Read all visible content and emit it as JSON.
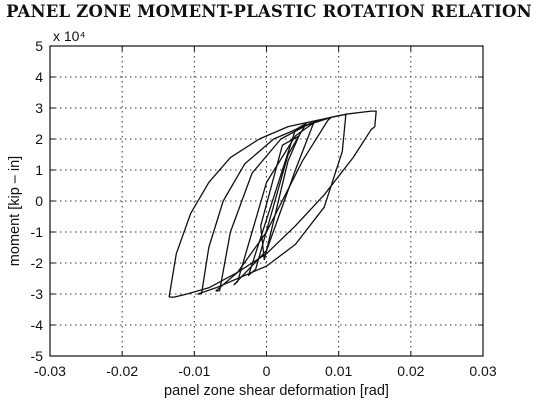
{
  "chart_data": {
    "type": "line",
    "title": "PANEL ZONE MOMENT-PLASTIC ROTATION RELATION",
    "xlabel": "panel zone shear deformation [rad]",
    "ylabel": "moment  [kip – in]",
    "y_multiplier": "x 10⁴",
    "xlim": [
      -0.03,
      0.03
    ],
    "ylim": [
      -5,
      5
    ],
    "x_ticks": [
      -0.03,
      -0.02,
      -0.01,
      0,
      0.01,
      0.02,
      0.03
    ],
    "x_tick_labels": [
      "-0.03",
      "-0.02",
      "-0.01",
      "0",
      "0.01",
      "0.02",
      "0.03"
    ],
    "y_ticks": [
      -5,
      -4,
      -3,
      -2,
      -1,
      0,
      1,
      2,
      3,
      4,
      5
    ],
    "y_tick_labels": [
      "-5",
      "-4",
      "-3",
      "-2",
      "-1",
      "0",
      "1",
      "2",
      "3",
      "4",
      "5"
    ],
    "grid": true,
    "grid_style": "dotted",
    "line_color": "#111111",
    "series": [
      {
        "x": [
          -0.0003,
          0.003,
          0.0045,
          0.0022,
          -0.0008,
          -0.0003
        ],
        "y": [
          -1.9,
          1.3,
          2.1,
          1.8,
          -0.8,
          -1.9
        ]
      },
      {
        "x": [
          -0.0015,
          0.003,
          0.0055,
          0.004,
          0.0,
          -0.0025,
          -0.0015
        ],
        "y": [
          -2.2,
          1.5,
          2.5,
          2.3,
          -0.6,
          -2.4,
          -2.2
        ]
      },
      {
        "x": [
          -0.004,
          0.0,
          0.004,
          0.007,
          0.0065,
          0.004,
          0.0,
          -0.0045,
          -0.004
        ],
        "y": [
          -2.6,
          0.6,
          2.1,
          2.6,
          2.5,
          1.0,
          -1.6,
          -2.7,
          -2.6
        ]
      },
      {
        "x": [
          -0.0065,
          -0.005,
          -0.002,
          0.002,
          0.006,
          0.009,
          0.0085,
          0.005,
          0.0,
          -0.004,
          -0.007,
          -0.0065
        ],
        "y": [
          -2.9,
          -1.0,
          0.9,
          2.0,
          2.5,
          2.7,
          2.6,
          1.3,
          -1.0,
          -2.3,
          -2.9,
          -2.9
        ]
      },
      {
        "x": [
          -0.009,
          -0.008,
          -0.006,
          -0.003,
          0.001,
          0.005,
          0.009,
          0.011,
          0.0108,
          0.0105,
          0.008,
          0.004,
          0.0,
          -0.004,
          -0.007,
          -0.0095,
          -0.009
        ],
        "y": [
          -3.0,
          -1.5,
          0.0,
          1.2,
          2.0,
          2.4,
          2.7,
          2.8,
          2.3,
          1.6,
          -0.2,
          -1.4,
          -2.1,
          -2.5,
          -2.8,
          -3.0,
          -3.0
        ]
      },
      {
        "x": [
          -0.0135,
          -0.0125,
          -0.0105,
          -0.008,
          -0.005,
          -0.001,
          0.003,
          0.007,
          0.011,
          0.0145,
          0.0152,
          0.015,
          0.0145,
          0.012,
          0.008,
          0.004,
          0.0,
          -0.004,
          -0.008,
          -0.011,
          -0.0128,
          -0.0135
        ],
        "y": [
          -3.1,
          -1.7,
          -0.4,
          0.6,
          1.4,
          2.0,
          2.4,
          2.6,
          2.8,
          2.9,
          2.9,
          2.4,
          2.3,
          1.4,
          0.2,
          -0.8,
          -1.7,
          -2.3,
          -2.8,
          -3.0,
          -3.1,
          -3.1
        ]
      }
    ]
  }
}
